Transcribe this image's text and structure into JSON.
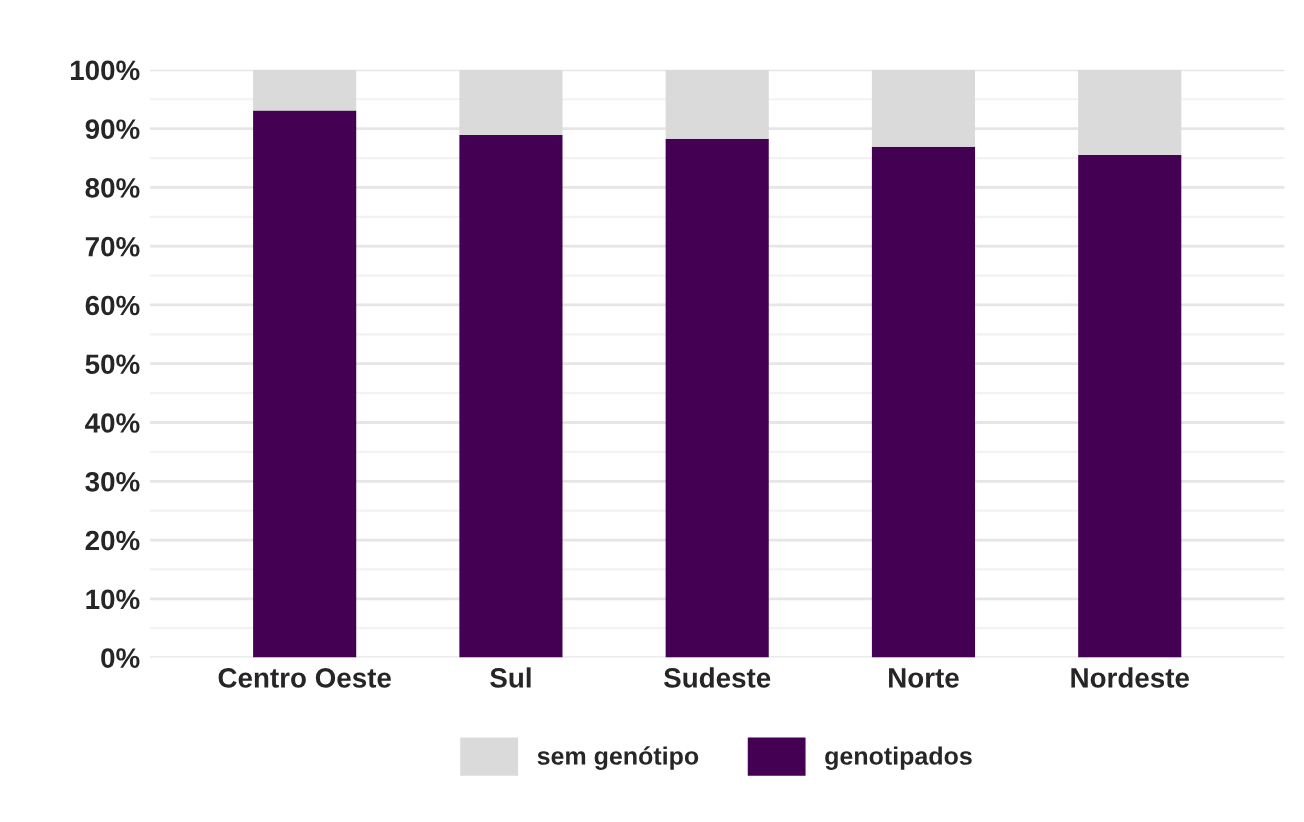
{
  "chart_data": {
    "type": "bar",
    "stacked": true,
    "categories": [
      "Centro Oeste",
      "Sul",
      "Sudeste",
      "Norte",
      "Nordeste"
    ],
    "series": [
      {
        "name": "genotipados",
        "color": "#440154",
        "values": [
          93.1,
          88.9,
          88.3,
          86.9,
          85.5
        ]
      },
      {
        "name": "sem genótipo",
        "color": "#dadada",
        "values": [
          6.9,
          11.1,
          11.7,
          13.1,
          14.5
        ]
      }
    ],
    "ylim": [
      0,
      100
    ],
    "yticks": [
      {
        "value": 0,
        "label": "0%"
      },
      {
        "value": 10,
        "label": "10%"
      },
      {
        "value": 20,
        "label": "20%"
      },
      {
        "value": 30,
        "label": "30%"
      },
      {
        "value": 40,
        "label": "40%"
      },
      {
        "value": 50,
        "label": "50%"
      },
      {
        "value": 60,
        "label": "60%"
      },
      {
        "value": 70,
        "label": "70%"
      },
      {
        "value": 80,
        "label": "80%"
      },
      {
        "value": 90,
        "label": "90%"
      },
      {
        "value": 100,
        "label": "100%"
      }
    ],
    "grid": "y",
    "legend": "bottom"
  }
}
